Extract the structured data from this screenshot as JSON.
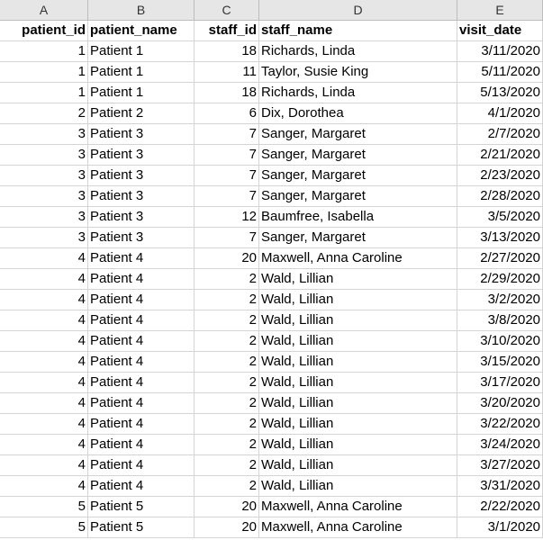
{
  "column_letters": [
    "A",
    "B",
    "C",
    "D",
    "E"
  ],
  "headers": [
    "patient_id",
    "patient_name",
    "staff_id",
    "staff_name",
    "visit_date"
  ],
  "rows": [
    [
      "1",
      "Patient 1",
      "18",
      "Richards, Linda",
      "3/11/2020"
    ],
    [
      "1",
      "Patient 1",
      "11",
      "Taylor, Susie King",
      "5/11/2020"
    ],
    [
      "1",
      "Patient 1",
      "18",
      "Richards, Linda",
      "5/13/2020"
    ],
    [
      "2",
      "Patient 2",
      "6",
      "Dix, Dorothea",
      "4/1/2020"
    ],
    [
      "3",
      "Patient 3",
      "7",
      "Sanger, Margaret",
      "2/7/2020"
    ],
    [
      "3",
      "Patient 3",
      "7",
      "Sanger, Margaret",
      "2/21/2020"
    ],
    [
      "3",
      "Patient 3",
      "7",
      "Sanger, Margaret",
      "2/23/2020"
    ],
    [
      "3",
      "Patient 3",
      "7",
      "Sanger, Margaret",
      "2/28/2020"
    ],
    [
      "3",
      "Patient 3",
      "12",
      "Baumfree, Isabella",
      "3/5/2020"
    ],
    [
      "3",
      "Patient 3",
      "7",
      "Sanger, Margaret",
      "3/13/2020"
    ],
    [
      "4",
      "Patient 4",
      "20",
      "Maxwell, Anna Caroline",
      "2/27/2020"
    ],
    [
      "4",
      "Patient 4",
      "2",
      "Wald, Lillian",
      "2/29/2020"
    ],
    [
      "4",
      "Patient 4",
      "2",
      "Wald, Lillian",
      "3/2/2020"
    ],
    [
      "4",
      "Patient 4",
      "2",
      "Wald, Lillian",
      "3/8/2020"
    ],
    [
      "4",
      "Patient 4",
      "2",
      "Wald, Lillian",
      "3/10/2020"
    ],
    [
      "4",
      "Patient 4",
      "2",
      "Wald, Lillian",
      "3/15/2020"
    ],
    [
      "4",
      "Patient 4",
      "2",
      "Wald, Lillian",
      "3/17/2020"
    ],
    [
      "4",
      "Patient 4",
      "2",
      "Wald, Lillian",
      "3/20/2020"
    ],
    [
      "4",
      "Patient 4",
      "2",
      "Wald, Lillian",
      "3/22/2020"
    ],
    [
      "4",
      "Patient 4",
      "2",
      "Wald, Lillian",
      "3/24/2020"
    ],
    [
      "4",
      "Patient 4",
      "2",
      "Wald, Lillian",
      "3/27/2020"
    ],
    [
      "4",
      "Patient 4",
      "2",
      "Wald, Lillian",
      "3/31/2020"
    ],
    [
      "5",
      "Patient 5",
      "20",
      "Maxwell, Anna Caroline",
      "2/22/2020"
    ],
    [
      "5",
      "Patient 5",
      "20",
      "Maxwell, Anna Caroline",
      "3/1/2020"
    ]
  ]
}
